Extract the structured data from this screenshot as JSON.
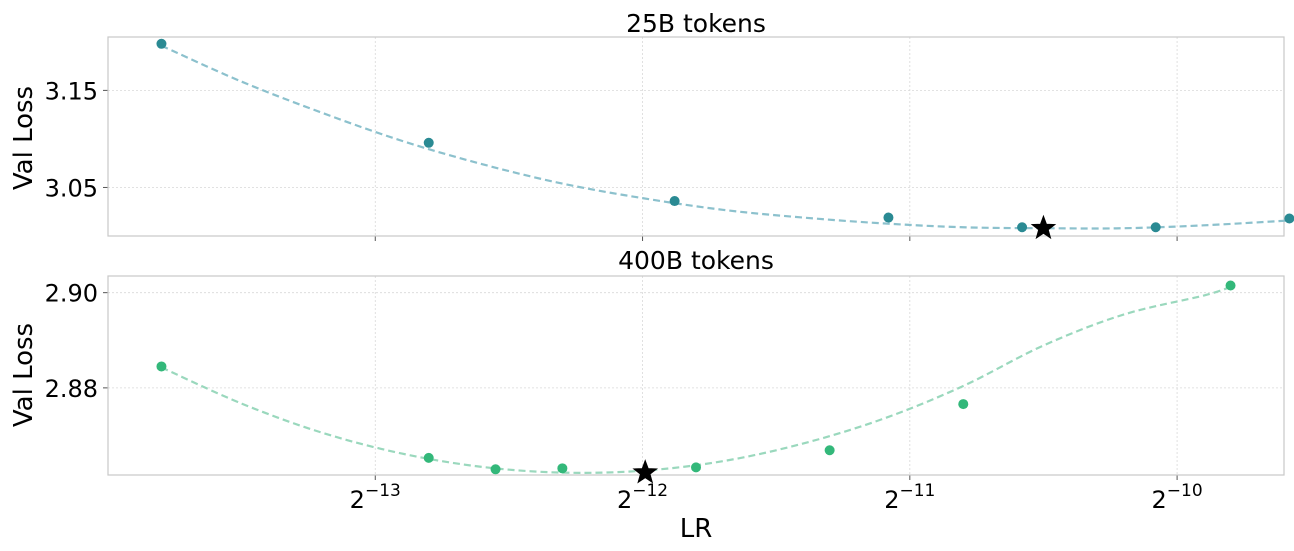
{
  "chart_data": [
    {
      "type": "scatter",
      "title": "25B tokens",
      "ylabel": "Val Loss",
      "xlabel": "",
      "x_scale": "log2",
      "x_ticks": [
        {
          "exp": -13,
          "label": "-13"
        },
        {
          "exp": -12,
          "label": "-12"
        },
        {
          "exp": -11,
          "label": "-11"
        },
        {
          "exp": -10,
          "label": "-10"
        }
      ],
      "x_tick_labels_shown": false,
      "y_ticks": [
        "3.05",
        "3.15"
      ],
      "ylim": [
        3.0,
        3.205
      ],
      "xlim_log2": [
        -14.0,
        -9.6
      ],
      "grid": true,
      "series": [
        {
          "color": "#2a8a93",
          "line_color": "#8cc1cd",
          "x_log2": [
            -13.8,
            -12.8,
            -11.88,
            -11.08,
            -10.58,
            -10.08,
            -9.58
          ],
          "y": [
            3.198,
            3.096,
            3.036,
            3.019,
            3.009,
            3.009,
            3.018
          ]
        }
      ],
      "fit_curve_x_log2": [
        -13.8,
        -13.5,
        -13.2,
        -12.9,
        -12.6,
        -12.3,
        -12.0,
        -11.7,
        -11.4,
        -11.1,
        -10.8,
        -10.5,
        -10.2,
        -9.9,
        -9.58
      ],
      "fit_curve_y": [
        3.196,
        3.159,
        3.127,
        3.098,
        3.074,
        3.054,
        3.039,
        3.027,
        3.019,
        3.013,
        3.009,
        3.008,
        3.008,
        3.011,
        3.016
      ],
      "optimum": {
        "x_log2": -10.5,
        "y": 3.008,
        "marker": "star"
      }
    },
    {
      "type": "scatter",
      "title": "400B tokens",
      "ylabel": "Val Loss",
      "xlabel": "LR",
      "x_scale": "log2",
      "x_ticks": [
        {
          "exp": -13,
          "label": "-13"
        },
        {
          "exp": -12,
          "label": "-12"
        },
        {
          "exp": -11,
          "label": "-11"
        },
        {
          "exp": -10,
          "label": "-10"
        }
      ],
      "x_tick_labels_shown": true,
      "x_tick_base": "2",
      "y_ticks": [
        "2.88",
        "2.90"
      ],
      "ylim": [
        2.8617,
        2.9035
      ],
      "xlim_log2": [
        -14.0,
        -9.6
      ],
      "grid": true,
      "series": [
        {
          "color": "#33b87a",
          "line_color": "#9ad8bd",
          "x_log2": [
            -13.8,
            -12.8,
            -12.55,
            -12.3,
            -11.8,
            -11.3,
            -10.8,
            -9.8
          ],
          "y": [
            2.8845,
            2.8653,
            2.8629,
            2.8631,
            2.8633,
            2.8669,
            2.8766,
            2.9015
          ]
        }
      ],
      "fit_curve_x_log2": [
        -13.8,
        -13.5,
        -13.2,
        -12.9,
        -12.6,
        -12.3,
        -12.0,
        -11.7,
        -11.4,
        -11.1,
        -10.8,
        -10.5,
        -10.2,
        -9.9,
        -9.8
      ],
      "fit_curve_y": [
        2.8843,
        2.8767,
        2.8706,
        2.8662,
        2.8634,
        2.8622,
        2.8626,
        2.8646,
        2.8683,
        2.8735,
        2.8804,
        2.8889,
        2.8954,
        2.8994,
        2.9012
      ],
      "optimum": {
        "x_log2": -11.99,
        "y": 2.8622,
        "marker": "star"
      }
    }
  ]
}
